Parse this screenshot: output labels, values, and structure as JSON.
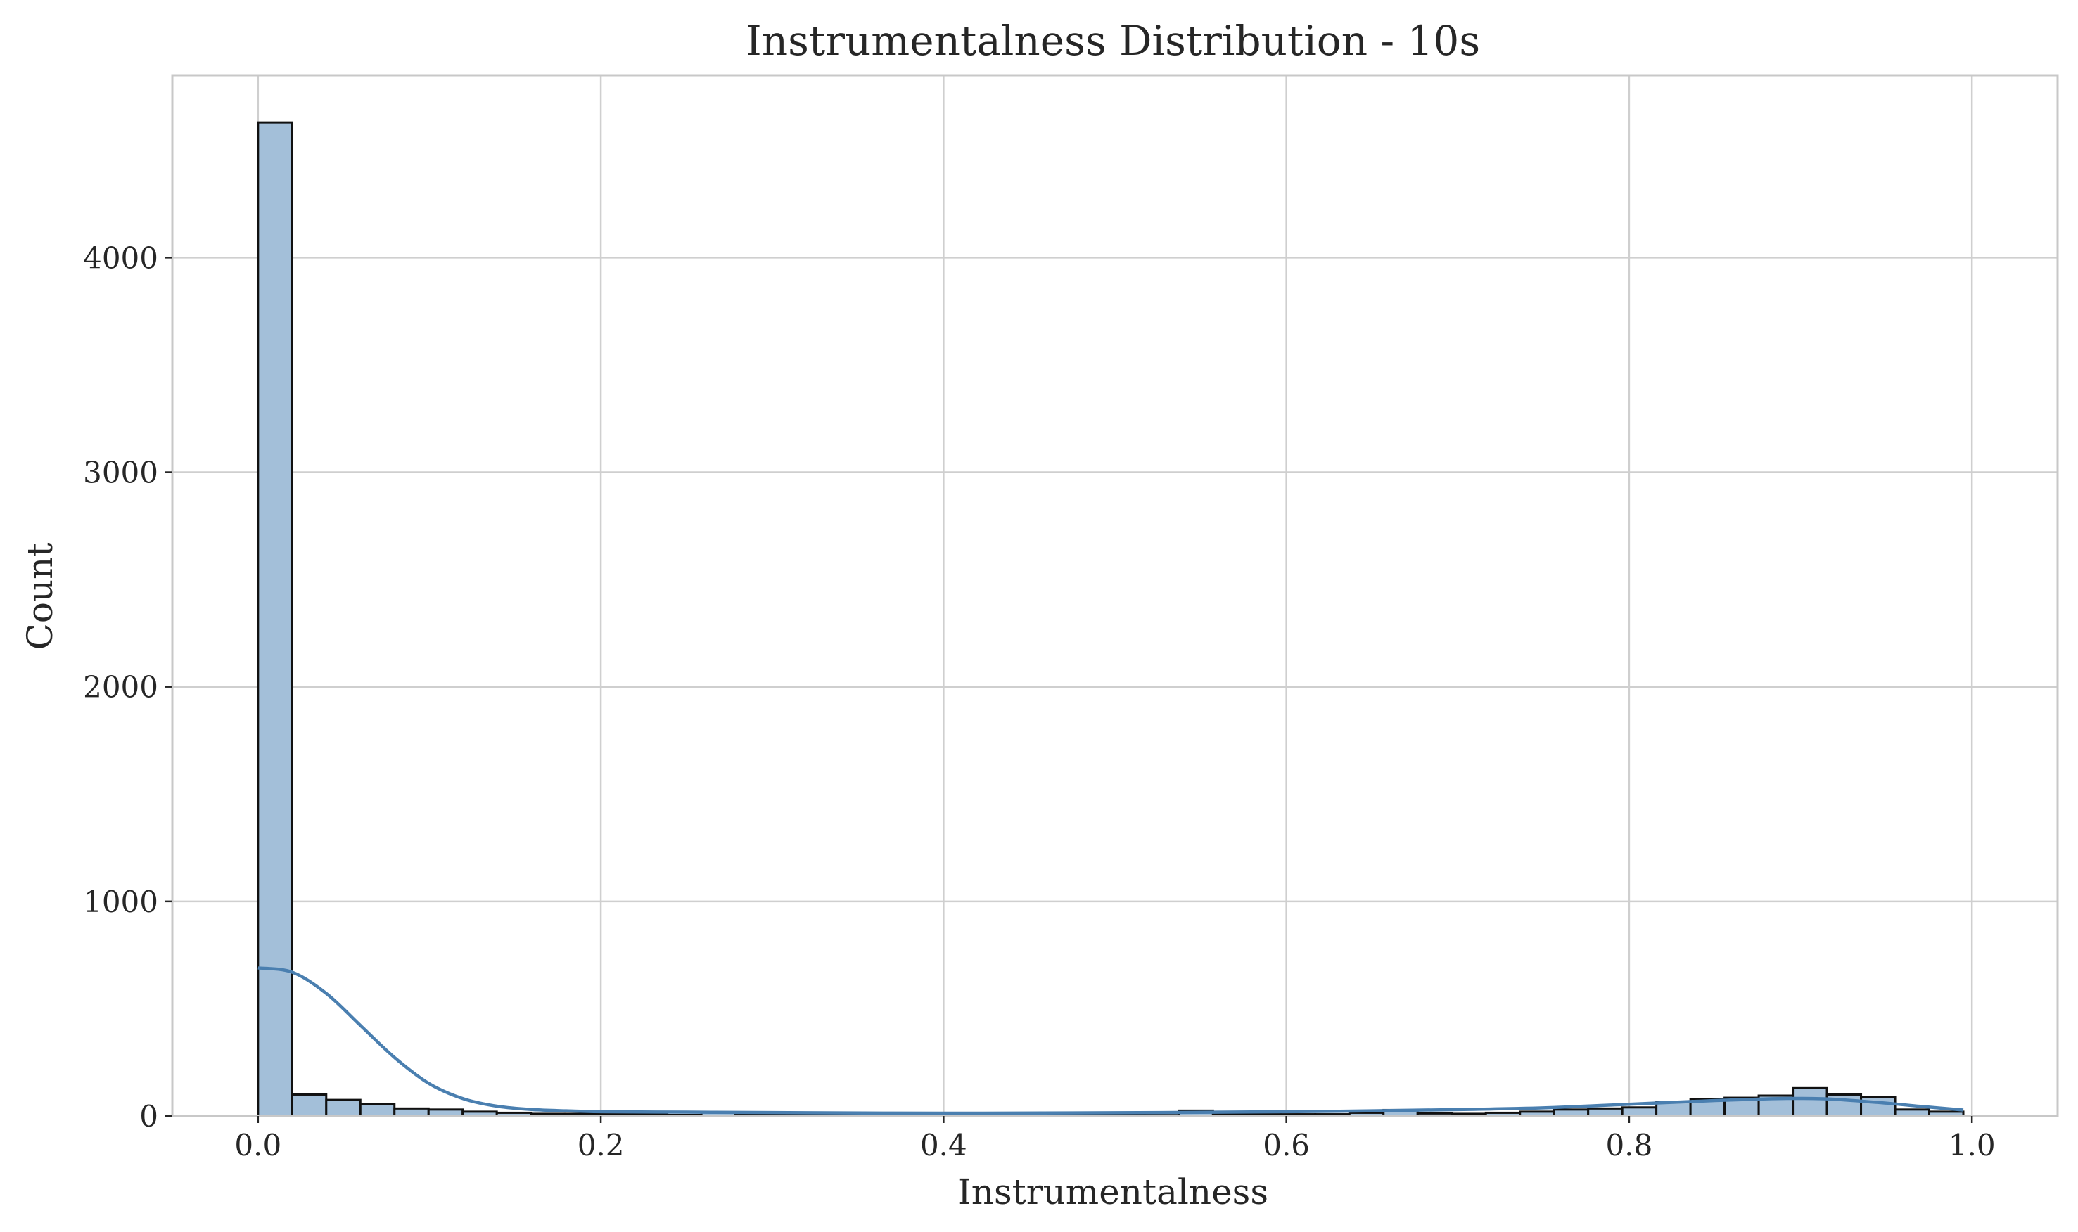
{
  "chart_data": {
    "type": "bar",
    "title": "Instrumentalness Distribution - 10s",
    "xlabel": "Instrumentalness",
    "ylabel": "Count",
    "xlim": [
      -0.05,
      1.05
    ],
    "ylim": [
      0,
      4850
    ],
    "xticks": [
      0.0,
      0.2,
      0.4,
      0.6,
      0.8,
      1.0
    ],
    "xtick_labels": [
      "0.0",
      "0.2",
      "0.4",
      "0.6",
      "0.8",
      "1.0"
    ],
    "yticks": [
      0,
      1000,
      2000,
      3000,
      4000
    ],
    "ytick_labels": [
      "0",
      "1000",
      "2000",
      "3000",
      "4000"
    ],
    "grid": true,
    "bin_range": [
      0.0,
      0.995
    ],
    "bin_count": 50,
    "counts": [
      4630,
      100,
      75,
      55,
      35,
      30,
      20,
      15,
      10,
      10,
      8,
      8,
      5,
      18,
      6,
      5,
      5,
      5,
      10,
      5,
      4,
      4,
      4,
      4,
      4,
      4,
      4,
      25,
      8,
      8,
      8,
      8,
      15,
      28,
      12,
      10,
      15,
      20,
      30,
      35,
      40,
      65,
      80,
      85,
      95,
      130,
      100,
      90,
      30,
      20
    ],
    "kde": {
      "x": [
        0.0,
        0.02,
        0.04,
        0.06,
        0.08,
        0.1,
        0.12,
        0.14,
        0.16,
        0.18,
        0.2,
        0.25,
        0.3,
        0.4,
        0.5,
        0.6,
        0.65,
        0.7,
        0.75,
        0.8,
        0.85,
        0.88,
        0.9,
        0.92,
        0.95,
        0.97,
        0.995
      ],
      "y": [
        690,
        670,
        570,
        420,
        270,
        150,
        80,
        45,
        30,
        24,
        20,
        18,
        16,
        13,
        15,
        20,
        24,
        30,
        38,
        55,
        72,
        80,
        82,
        78,
        60,
        45,
        28
      ]
    }
  }
}
